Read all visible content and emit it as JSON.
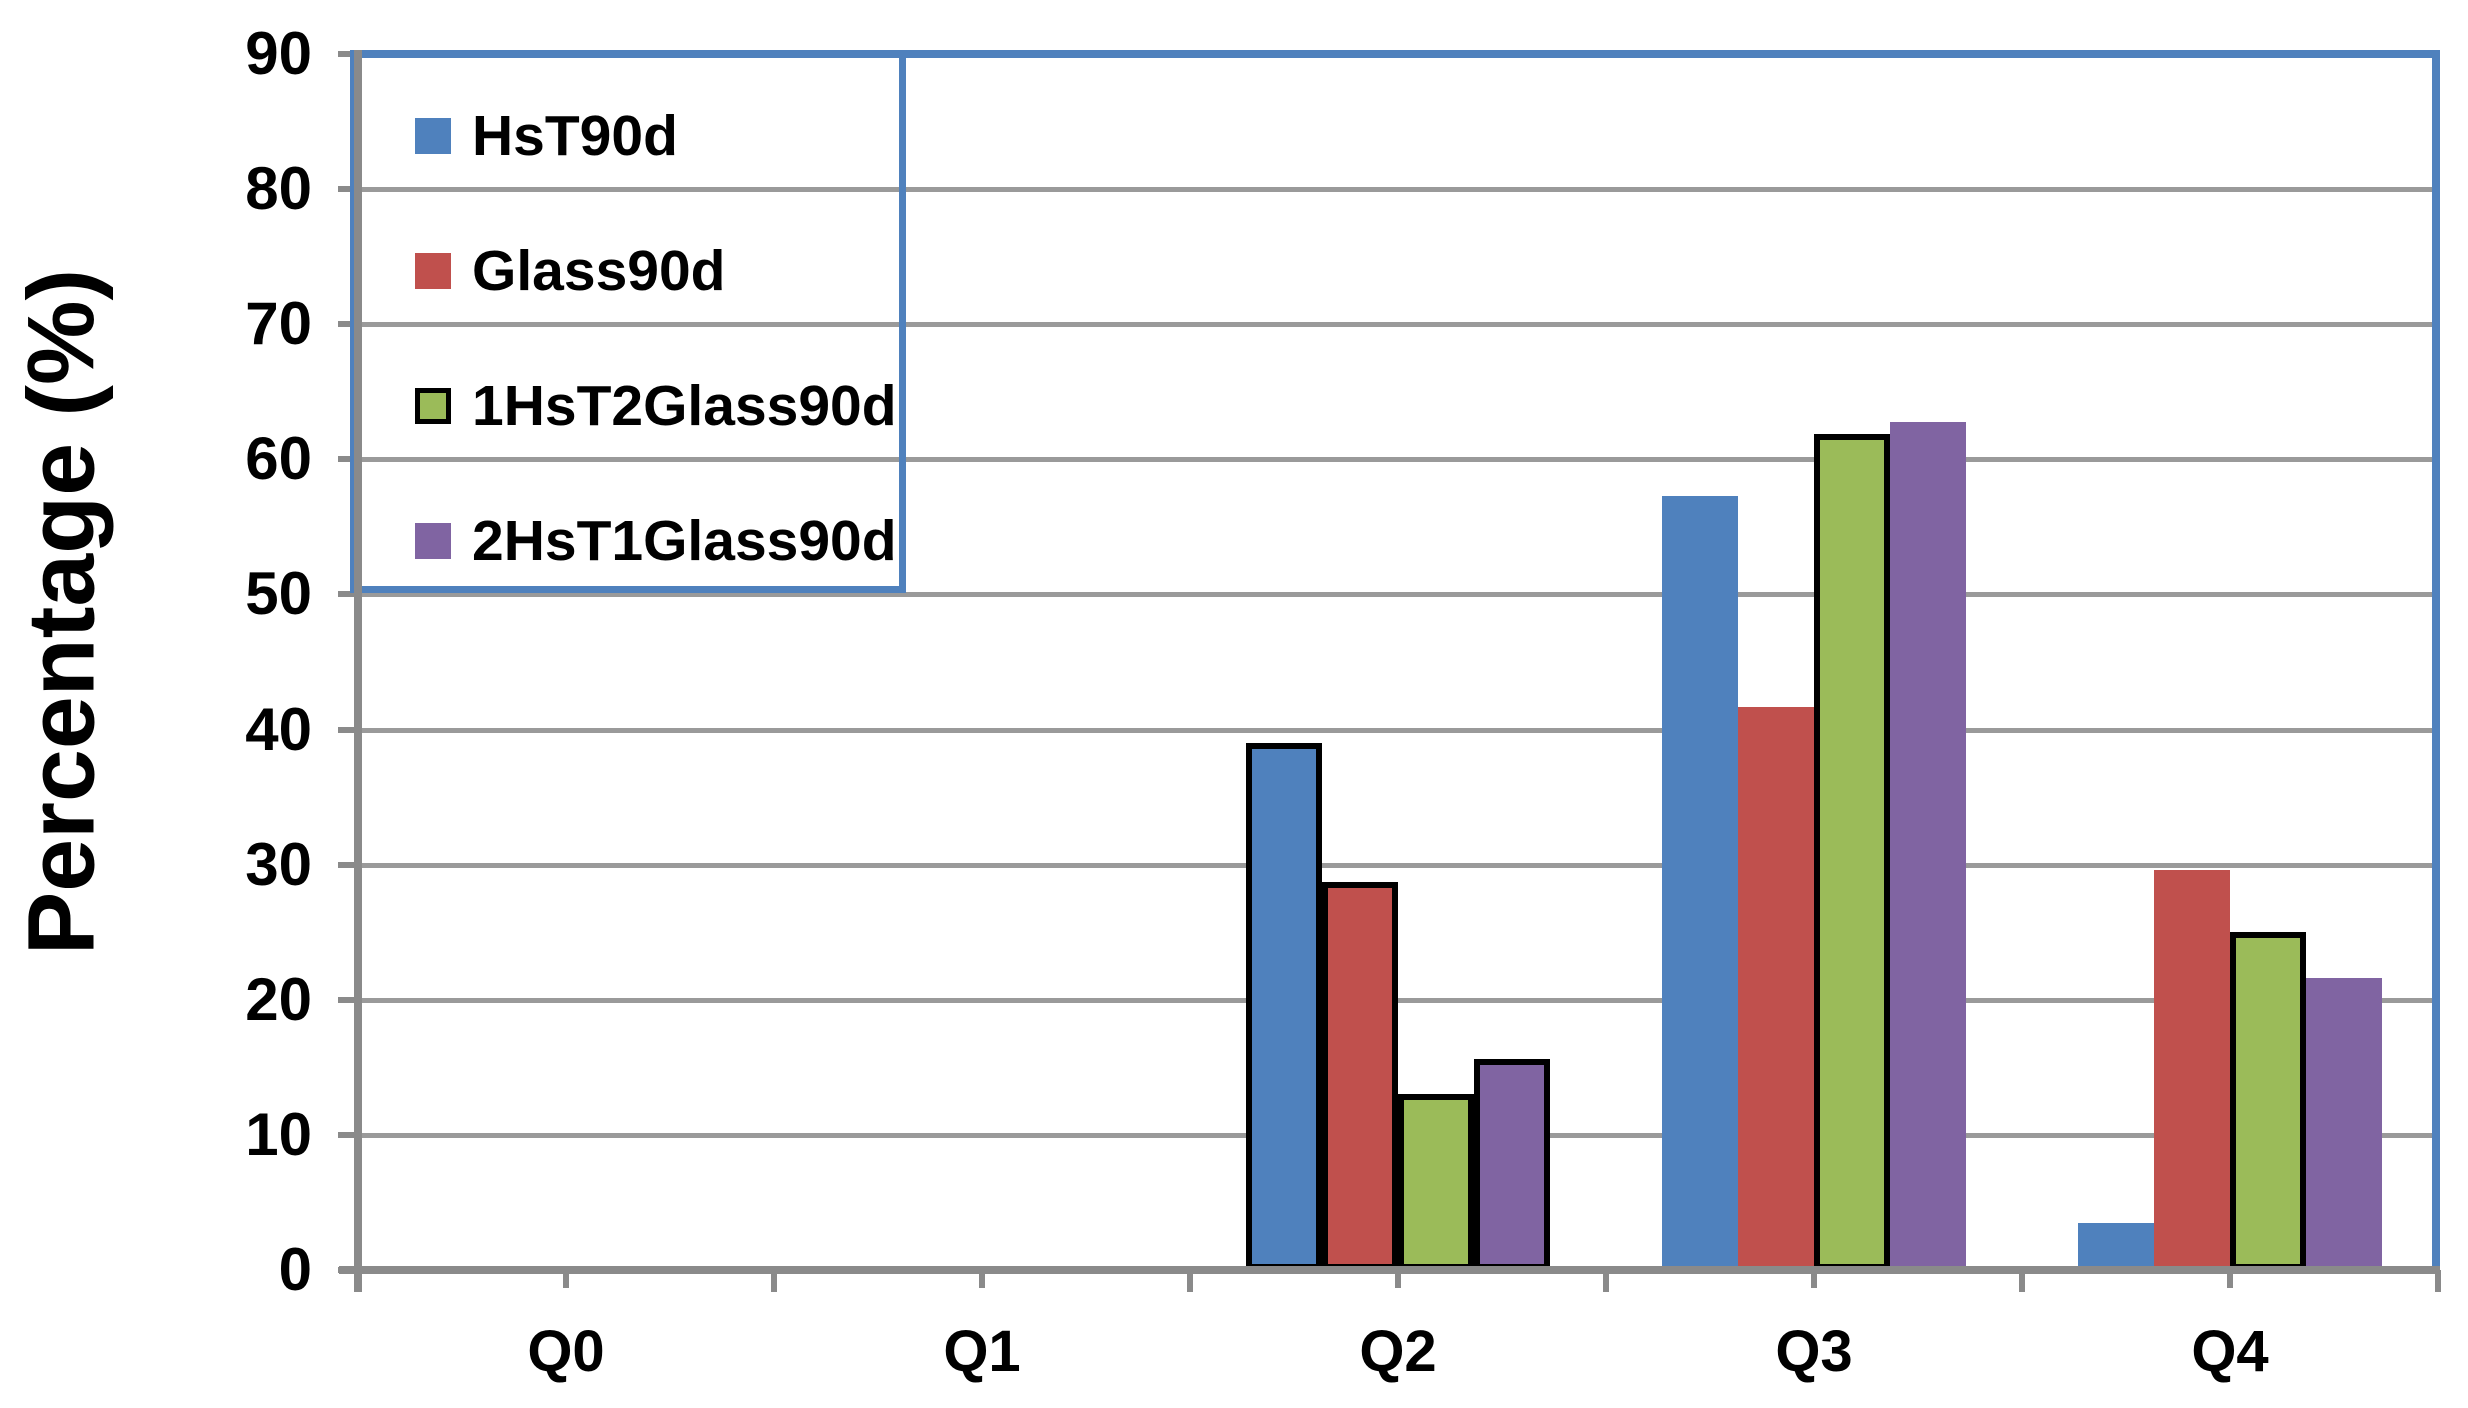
{
  "chart_data": {
    "type": "bar",
    "title": "",
    "xlabel": "",
    "ylabel": "Percentage (%)",
    "ylim": [
      0,
      90
    ],
    "yticks": [
      0,
      10,
      20,
      30,
      40,
      50,
      60,
      70,
      80,
      90
    ],
    "categories": [
      "Q0",
      "Q1",
      "Q2",
      "Q3",
      "Q4"
    ],
    "series": [
      {
        "name": "HsT90d",
        "color": "#4F81BD",
        "values": [
          0,
          0,
          39,
          57.3,
          3.5
        ],
        "outlined_points": [
          false,
          false,
          true,
          false,
          false
        ],
        "legend_swatch_outlined": false
      },
      {
        "name": "Glass90d",
        "color": "#C0504D",
        "values": [
          0,
          0,
          28.7,
          41.7,
          29.6
        ],
        "outlined_points": [
          false,
          false,
          true,
          false,
          false
        ],
        "legend_swatch_outlined": false
      },
      {
        "name": "1HsT2Glass90d",
        "color": "#9BBB59",
        "values": [
          0,
          0,
          13,
          61.9,
          25
        ],
        "outlined_points": [
          false,
          false,
          true,
          true,
          true
        ],
        "legend_swatch_outlined": true
      },
      {
        "name": "2HsT1Glass90d",
        "color": "#8064A2",
        "values": [
          0,
          0,
          15.6,
          62.8,
          21.6
        ],
        "outlined_points": [
          false,
          false,
          true,
          false,
          false
        ],
        "legend_swatch_outlined": false
      }
    ],
    "grid": "horizontal",
    "legend_position": "top-left-inside",
    "style": {
      "axis_color": "#8A8A8A",
      "gridline_color": "#9A9A9A",
      "plot_border_color": "#4F81BD",
      "bar_outline_color": "#000000",
      "text_color": "#000000"
    }
  }
}
